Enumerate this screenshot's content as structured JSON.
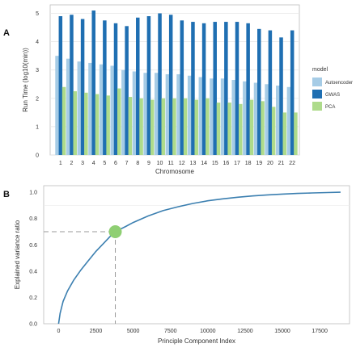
{
  "panel_a_letter": "A",
  "panel_b_letter": "B",
  "chart_data": [
    {
      "type": "bar",
      "xlabel": "Chromosome",
      "ylabel": "Run Time (log10(min))",
      "categories": [
        "1",
        "2",
        "3",
        "4",
        "5",
        "6",
        "7",
        "8",
        "9",
        "10",
        "11",
        "12",
        "13",
        "14",
        "15",
        "16",
        "17",
        "18",
        "19",
        "20",
        "21",
        "22"
      ],
      "ylim": [
        0,
        5.3
      ],
      "yticks": [
        0,
        1,
        2,
        3,
        4,
        5
      ],
      "legend_title": "model",
      "legend_position": "right",
      "grid": true,
      "series": [
        {
          "name": "Autoencoder",
          "color": "#a6cce6",
          "values": [
            3.5,
            3.4,
            3.3,
            3.25,
            3.2,
            3.15,
            3.0,
            2.95,
            2.9,
            2.9,
            2.85,
            2.85,
            2.8,
            2.75,
            2.7,
            2.7,
            2.65,
            2.6,
            2.55,
            2.5,
            2.45,
            2.4
          ]
        },
        {
          "name": "GWAS",
          "color": "#1f6fb2",
          "values": [
            4.9,
            4.95,
            4.8,
            5.1,
            4.75,
            4.65,
            4.55,
            4.85,
            4.9,
            5.0,
            4.95,
            4.75,
            4.7,
            4.65,
            4.7,
            4.7,
            4.7,
            4.65,
            4.45,
            4.4,
            4.15,
            4.4
          ]
        },
        {
          "name": "PCA",
          "color": "#aedb8b",
          "values": [
            2.4,
            2.25,
            2.2,
            2.15,
            2.1,
            2.35,
            2.05,
            2.0,
            1.95,
            2.0,
            2.0,
            2.0,
            1.95,
            2.0,
            1.85,
            1.85,
            1.8,
            1.95,
            1.9,
            1.7,
            1.5,
            1.5
          ]
        }
      ]
    },
    {
      "type": "line",
      "xlabel": "Principle Component Index",
      "ylabel": "Explained variance ratio",
      "xlim": [
        -1000,
        19500
      ],
      "ylim": [
        0,
        1.05
      ],
      "xticks": [
        0,
        2500,
        5000,
        7500,
        10000,
        12500,
        15000,
        17500
      ],
      "yticks": [
        0.0,
        0.2,
        0.4,
        0.6,
        0.8,
        1.0
      ],
      "line_color": "#3b7fb0",
      "series": [
        {
          "x": [
            0,
            100,
            300,
            600,
            1000,
            1500,
            2000,
            2500,
            3000,
            3500,
            3800,
            4500,
            5000,
            6000,
            7000,
            8000,
            9000,
            10000,
            11000,
            12000,
            13000,
            14000,
            15000,
            16000,
            17000,
            18000,
            18900
          ],
          "y": [
            0.0,
            0.08,
            0.17,
            0.25,
            0.33,
            0.41,
            0.48,
            0.55,
            0.61,
            0.67,
            0.7,
            0.74,
            0.77,
            0.82,
            0.86,
            0.89,
            0.915,
            0.935,
            0.95,
            0.962,
            0.972,
            0.98,
            0.986,
            0.991,
            0.995,
            0.998,
            1.0
          ]
        }
      ],
      "marker": {
        "x": 3800,
        "y": 0.7,
        "color": "#8fcf73"
      },
      "reference_lines": {
        "x": 3800,
        "y": 0.7,
        "style": "dashed",
        "color": "#999999"
      }
    }
  ]
}
